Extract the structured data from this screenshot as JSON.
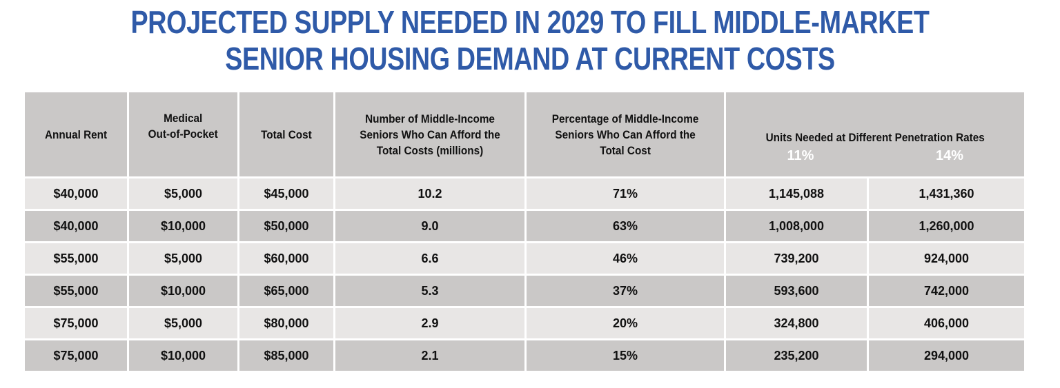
{
  "title_lines": [
    "PROJECTED SUPPLY NEEDED IN 2029 TO FILL MIDDLE-MARKET",
    "SENIOR HOUSING DEMAND AT CURRENT COSTS"
  ],
  "colors": {
    "title": "#2f5aa8",
    "header_bg": "#cac8c7",
    "row_light": "#e8e6e5",
    "row_dark": "#cac8c7",
    "rate_label": "#ffffff"
  },
  "chart_data": {
    "type": "table",
    "title": "PROJECTED SUPPLY NEEDED IN 2029 TO FILL MIDDLE-MARKET SENIOR HOUSING DEMAND AT CURRENT COSTS",
    "headers": {
      "annual_rent": "Annual Rent",
      "medical_line1": "Medical",
      "medical_line2": "Out-of-Pocket",
      "total_cost": "Total Cost",
      "number_line1": "Number of Middle-Income",
      "number_line2": "Seniors Who Can Afford the",
      "number_line3": "Total Costs (millions)",
      "pct_line1": "Percentage of Middle-Income",
      "pct_line2": "Seniors Who Can Afford the",
      "pct_line3": "Total Cost",
      "units": "Units Needed at Different Penetration Rates",
      "rate_11": "11%",
      "rate_14": "14%"
    },
    "rows": [
      [
        "$40,000",
        "$5,000",
        "$45,000",
        "10.2",
        "71%",
        "1,145,088",
        "1,431,360"
      ],
      [
        "$40,000",
        "$10,000",
        "$50,000",
        "9.0",
        "63%",
        "1,008,000",
        "1,260,000"
      ],
      [
        "$55,000",
        "$5,000",
        "$60,000",
        "6.6",
        "46%",
        "739,200",
        "924,000"
      ],
      [
        "$55,000",
        "$10,000",
        "$65,000",
        "5.3",
        "37%",
        "593,600",
        "742,000"
      ],
      [
        "$75,000",
        "$5,000",
        "$80,000",
        "2.9",
        "20%",
        "324,800",
        "406,000"
      ],
      [
        "$75,000",
        "$10,000",
        "$85,000",
        "2.1",
        "15%",
        "235,200",
        "294,000"
      ]
    ]
  }
}
